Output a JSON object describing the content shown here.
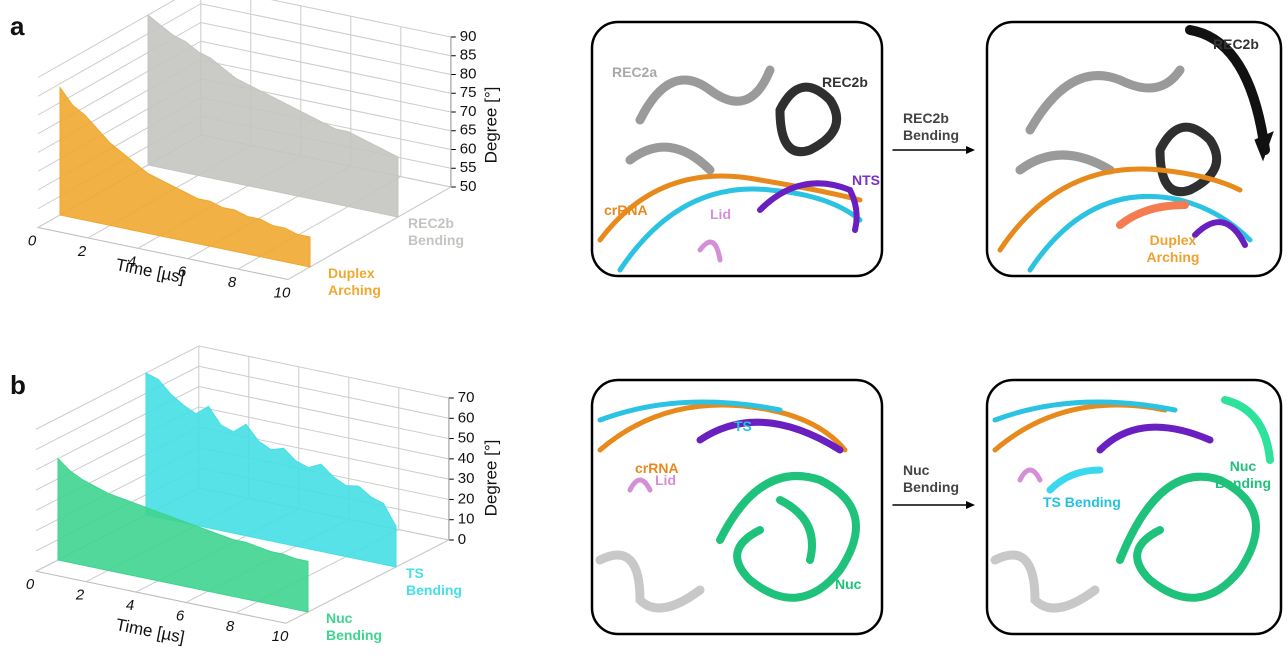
{
  "panel_labels": [
    "a",
    "b"
  ],
  "chart_data": [
    {
      "type": "area",
      "xlabel": "Time [µs]",
      "ylabel": "Degree [°]",
      "x": [
        0,
        0.5,
        1,
        1.5,
        2,
        2.5,
        3,
        3.5,
        4,
        4.5,
        5,
        5.5,
        6,
        6.5,
        7,
        7.5,
        8,
        8.5,
        9,
        9.5,
        10
      ],
      "xlim": [
        0,
        10
      ],
      "xticks": [
        0,
        2,
        4,
        6,
        8,
        10
      ],
      "ylim": [
        50,
        90
      ],
      "yticks": [
        50,
        55,
        60,
        65,
        70,
        75,
        80,
        85,
        90
      ],
      "grid": true,
      "series": [
        {
          "name": "Duplex Arching",
          "color": "#f0a830",
          "values": [
            84,
            80,
            78,
            75,
            72,
            70,
            68,
            66,
            65,
            64,
            63,
            62,
            62,
            61,
            61,
            60,
            60,
            59,
            59,
            58,
            58
          ]
        },
        {
          "name": "REC2b Bending",
          "color": "#c4c4c0",
          "values": [
            90,
            88,
            86,
            85,
            83,
            82,
            80,
            78,
            77,
            76,
            75,
            74,
            73,
            72,
            71,
            70,
            70,
            69,
            68,
            67,
            66
          ]
        }
      ]
    },
    {
      "type": "area",
      "xlabel": "Time [µs]",
      "ylabel": "Degree [°]",
      "x": [
        0,
        0.5,
        1,
        1.5,
        2,
        2.5,
        3,
        3.5,
        4,
        4.5,
        5,
        5.5,
        6,
        6.5,
        7,
        7.5,
        8,
        8.5,
        9,
        9.5,
        10
      ],
      "xlim": [
        0,
        10
      ],
      "xticks": [
        0,
        2,
        4,
        6,
        8,
        10
      ],
      "ylim": [
        0,
        70
      ],
      "yticks": [
        0,
        10,
        20,
        30,
        40,
        50,
        60,
        70
      ],
      "grid": true,
      "series": [
        {
          "name": "Nuc Bending",
          "color": "#3fd48f",
          "values": [
            50,
            45,
            42,
            40,
            38,
            37,
            36,
            35,
            34,
            33,
            32,
            31,
            30,
            29,
            28,
            28,
            27,
            26,
            26,
            25,
            25
          ]
        },
        {
          "name": "TS Bending",
          "color": "#45dfe6",
          "values": [
            70,
            68,
            62,
            58,
            55,
            60,
            52,
            50,
            55,
            48,
            45,
            47,
            42,
            40,
            43,
            38,
            35,
            36,
            32,
            30,
            20
          ]
        }
      ]
    }
  ],
  "structure_panels": [
    {
      "before": [
        {
          "text": "REC2a",
          "color": "#a8a8a8"
        },
        {
          "text": "REC2b",
          "color": "#333333"
        },
        {
          "text": "NTS",
          "color": "#7b2fc4"
        },
        {
          "text": "crRNA",
          "color": "#e8891c"
        },
        {
          "text": "Lid",
          "color": "#d58fd8"
        }
      ],
      "arrow_label": "REC2b Bending",
      "after": [
        {
          "text": "REC2b",
          "color": "#333333"
        },
        {
          "text": "Duplex Arching",
          "color": "#f0a030"
        }
      ]
    },
    {
      "before": [
        {
          "text": "TS",
          "color": "#25c2e0"
        },
        {
          "text": "crRNA",
          "color": "#e8891c"
        },
        {
          "text": "Lid",
          "color": "#d58fd8"
        },
        {
          "text": "Nuc",
          "color": "#1fc27a"
        }
      ],
      "arrow_label": "Nuc Bending",
      "after": [
        {
          "text": "TS Bending",
          "color": "#25c2e0"
        },
        {
          "text": "Nuc Bending",
          "color": "#1fc27a"
        }
      ]
    }
  ]
}
